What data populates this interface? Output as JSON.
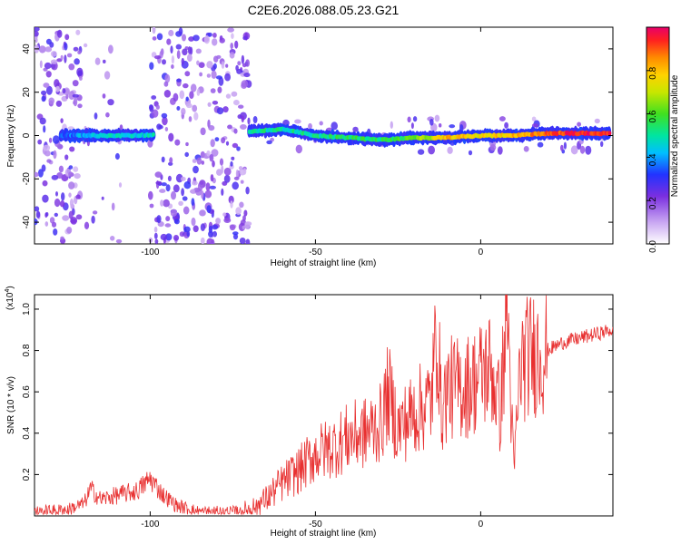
{
  "title": "C2E6.2026.088.05.23.G21",
  "chart_data": [
    {
      "type": "heatmap",
      "xlabel": "Height of straight line (km)",
      "ylabel": "Frequency (Hz)",
      "xlim": [
        -135,
        40
      ],
      "ylim": [
        -50,
        50
      ],
      "x_ticks": [
        -100,
        -50,
        0
      ],
      "y_ticks": [
        -40,
        -20,
        0,
        20,
        40
      ],
      "colorbar": {
        "label": "Normalized spectral amplitude",
        "range": [
          0,
          1
        ],
        "ticks": [
          0.0,
          0.2,
          0.4,
          0.6,
          0.8
        ]
      },
      "ridge": [
        {
          "x": -125,
          "y": 0,
          "amp": 0.35
        },
        {
          "x": -115,
          "y": 0,
          "amp": 0.45
        },
        {
          "x": -105,
          "y": 0,
          "amp": 0.45
        },
        {
          "x": -68,
          "y": 2,
          "amp": 0.5
        },
        {
          "x": -60,
          "y": 3,
          "amp": 0.5
        },
        {
          "x": -50,
          "y": 0,
          "amp": 0.5
        },
        {
          "x": -40,
          "y": -1,
          "amp": 0.55
        },
        {
          "x": -30,
          "y": -2,
          "amp": 0.55
        },
        {
          "x": -20,
          "y": -1,
          "amp": 0.6
        },
        {
          "x": -10,
          "y": -1,
          "amp": 0.8
        },
        {
          "x": 0,
          "y": 0,
          "amp": 0.75
        },
        {
          "x": 10,
          "y": 0,
          "amp": 0.8
        },
        {
          "x": 20,
          "y": 1,
          "amp": 0.9
        },
        {
          "x": 30,
          "y": 1,
          "amp": 0.95
        },
        {
          "x": 38,
          "y": 1,
          "amp": 0.95
        }
      ]
    },
    {
      "type": "line",
      "xlabel": "Height of straight line (km)",
      "ylabel": "SNR (10 * v/v)",
      "y_multiplier": "(x10",
      "y_multiplier_exp": "4",
      "xlim": [
        -135,
        40
      ],
      "ylim": [
        0,
        1.07
      ],
      "x_ticks": [
        -100,
        -50,
        0
      ],
      "y_ticks": [
        0.2,
        0.4,
        0.6,
        0.8,
        1.0
      ],
      "color": "#e83030",
      "x": [
        -135,
        -125,
        -120,
        -118,
        -115,
        -110,
        -104,
        -100,
        -96,
        -92,
        -85,
        -75,
        -70,
        -65,
        -60,
        -55,
        -50,
        -45,
        -40,
        -35,
        -30,
        -28,
        -25,
        -20,
        -15,
        -13,
        -12,
        -10,
        -5,
        -2,
        0,
        3,
        6,
        8,
        10,
        12,
        15,
        20,
        25,
        30,
        35,
        40
      ],
      "values": [
        0.02,
        0.03,
        0.06,
        0.13,
        0.08,
        0.1,
        0.12,
        0.18,
        0.1,
        0.05,
        0.02,
        0.02,
        0.03,
        0.08,
        0.16,
        0.22,
        0.3,
        0.33,
        0.38,
        0.4,
        0.45,
        0.6,
        0.42,
        0.5,
        0.56,
        0.92,
        0.5,
        0.62,
        0.62,
        0.65,
        0.68,
        0.72,
        0.5,
        1.05,
        0.2,
        0.73,
        0.78,
        0.8,
        0.84,
        0.86,
        0.88,
        0.9
      ]
    }
  ]
}
